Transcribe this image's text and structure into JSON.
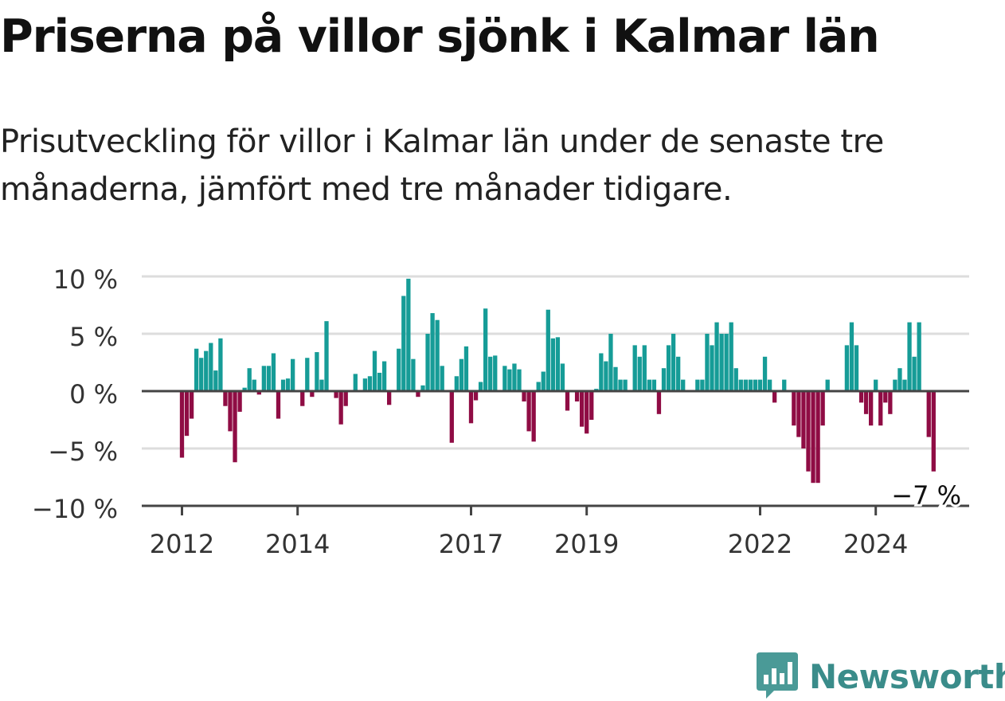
{
  "title": "Priserna på villor sjönk i Kalmar län",
  "subtitle": "Prisutveckling för villor i Kalmar län under de senaste tre månaderna, jämfört med tre månader tidigare.",
  "logo": {
    "text": "Newsworthy",
    "icon": "chart-bubble-icon"
  },
  "colors": {
    "positive": "#169c97",
    "negative": "#8f0c44",
    "axis": "#444444",
    "grid": "#dddddd"
  },
  "chart_data": {
    "type": "bar",
    "ylim": [
      -10,
      10
    ],
    "y_ticks": [
      {
        "value": 10,
        "label": "10 %"
      },
      {
        "value": 5,
        "label": "5 %"
      },
      {
        "value": 0,
        "label": "0 %"
      },
      {
        "value": -5,
        "label": "−5 %"
      },
      {
        "value": -10,
        "label": "−10 %"
      }
    ],
    "x_ticks": [
      {
        "date": "2012-01",
        "label": "2012"
      },
      {
        "date": "2014-01",
        "label": "2014"
      },
      {
        "date": "2017-01",
        "label": "2017"
      },
      {
        "date": "2019-01",
        "label": "2019"
      },
      {
        "date": "2022-01",
        "label": "2022"
      },
      {
        "date": "2024-01",
        "label": "2024"
      }
    ],
    "start": "2012-01",
    "values": [
      -5.8,
      -3.9,
      -2.4,
      3.7,
      2.9,
      3.5,
      4.2,
      1.8,
      4.6,
      -1.3,
      -3.5,
      -6.2,
      -1.8,
      0.3,
      2.0,
      1.0,
      -0.3,
      2.2,
      2.2,
      3.3,
      -2.4,
      1.0,
      1.1,
      2.8,
      0.0,
      -1.3,
      2.9,
      -0.5,
      3.4,
      1.0,
      6.1,
      0.0,
      -0.6,
      -2.9,
      -1.3,
      0.0,
      1.5,
      0.0,
      1.1,
      1.3,
      3.5,
      1.6,
      2.6,
      -1.2,
      0.0,
      3.7,
      8.3,
      9.8,
      2.8,
      -0.5,
      0.5,
      5.0,
      6.8,
      6.2,
      2.2,
      0.1,
      -4.5,
      1.3,
      2.8,
      3.9,
      -2.8,
      -0.8,
      0.8,
      7.2,
      3.0,
      3.1,
      0.0,
      2.2,
      1.9,
      2.4,
      1.9,
      -0.9,
      -3.5,
      -4.4,
      0.8,
      1.7,
      7.1,
      4.6,
      4.7,
      2.4,
      -1.7,
      0.0,
      -0.9,
      -3.1,
      -3.7,
      -2.5,
      0.2,
      3.3,
      2.6,
      5.0,
      2.1,
      1.0,
      1.0,
      0.0,
      4.0,
      3.0,
      4.0,
      1.0,
      1.0,
      -2.0,
      2.0,
      4.0,
      5.0,
      3.0,
      1.0,
      0.0,
      0.0,
      1.0,
      1.0,
      5.0,
      4.0,
      6.0,
      5.0,
      5.0,
      6.0,
      2.0,
      1.0,
      1.0,
      1.0,
      1.0,
      1.0,
      3.0,
      1.0,
      -1.0,
      0.0,
      1.0,
      0.0,
      -3.0,
      -4.0,
      -5.0,
      -7.0,
      -8.0,
      -8.0,
      -3.0,
      1.0,
      0.0,
      0.0,
      0.0,
      4.0,
      6.0,
      4.0,
      -1.0,
      -2.0,
      -3.0,
      1.0,
      -3.0,
      -1.0,
      -2.0,
      1.0,
      2.0,
      1.0,
      6.0,
      3.0,
      6.0,
      0.0,
      -4.0,
      -7.0
    ],
    "last_label": "−7 %",
    "grid": true,
    "legend": "none"
  }
}
